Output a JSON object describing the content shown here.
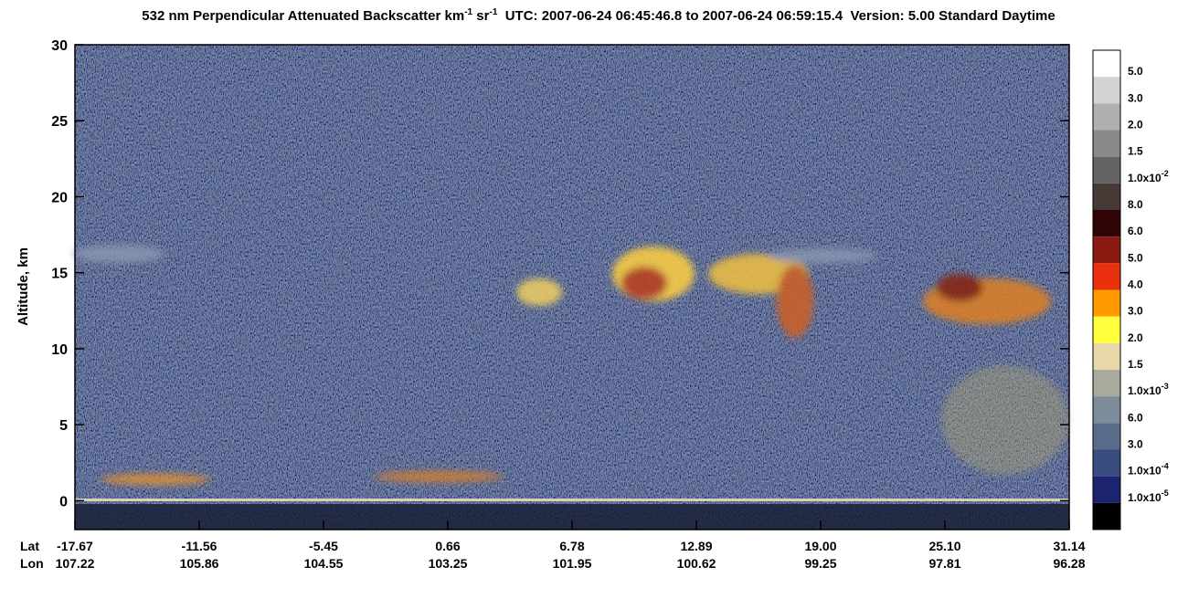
{
  "chart_data": {
    "type": "lidar-curtain",
    "title_parts": [
      "532 nm Perpendicular Attenuated Backscatter km",
      "-1",
      " sr",
      "-1",
      "  UTC: 2007-06-24 06:45:46.8 to 2007-06-24 06:59:15.4  Version: 5.00 Standard Daytime"
    ],
    "y_label": "Altitude, km",
    "ylim": [
      -1.9,
      30
    ],
    "yticks": [
      0,
      5,
      10,
      15,
      20,
      25,
      30
    ],
    "x_rows": [
      {
        "name": "Lat",
        "labels": [
          "-17.67",
          "-11.56",
          "-5.45",
          "0.66",
          "6.78",
          "12.89",
          "19.00",
          "25.10",
          "31.14"
        ]
      },
      {
        "name": "Lon",
        "labels": [
          "107.22",
          "105.86",
          "104.55",
          "103.25",
          "101.95",
          "100.62",
          "99.25",
          "97.81",
          "96.28"
        ]
      }
    ],
    "colorbar": {
      "colors": [
        "#ffffff",
        "#d4d4d4",
        "#b0b0b0",
        "#8a8a8a",
        "#636363",
        "#473a36",
        "#300404",
        "#8a1a12",
        "#e8300c",
        "#ff9a00",
        "#ffff3c",
        "#e8d8a8",
        "#a9aa9e",
        "#7c8c9a",
        "#586c8a",
        "#384c80",
        "#1c2470",
        "#000000"
      ],
      "labels": [
        {
          "text": "5.0"
        },
        {
          "text": "3.0"
        },
        {
          "text": "2.0"
        },
        {
          "text": "1.5"
        },
        {
          "text": "1.0x10",
          "sup": "-2"
        },
        {
          "text": "8.0"
        },
        {
          "text": "6.0"
        },
        {
          "text": "5.0"
        },
        {
          "text": "4.0"
        },
        {
          "text": "3.0"
        },
        {
          "text": "2.0"
        },
        {
          "text": "1.5"
        },
        {
          "text": "1.0x10",
          "sup": "-3"
        },
        {
          "text": "6.0"
        },
        {
          "text": "3.0"
        },
        {
          "text": "1.0x10",
          "sup": "-4"
        },
        {
          "text": "1.0x10",
          "sup": "-5"
        }
      ]
    }
  }
}
